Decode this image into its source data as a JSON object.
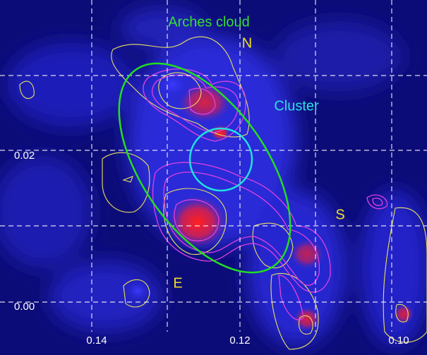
{
  "image": {
    "labels": {
      "cloud": "Arches cloud",
      "north": "N",
      "cluster": "Cluster",
      "south": "S",
      "east": "E"
    },
    "x_ticks": [
      "0.14",
      "0.12",
      "0.10"
    ],
    "y_ticks": [
      "0.02",
      "0.00"
    ]
  }
}
